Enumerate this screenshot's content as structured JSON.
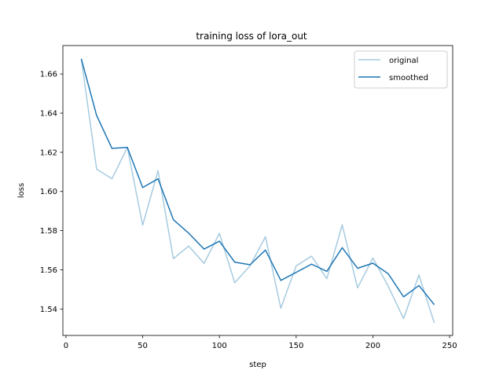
{
  "chart_data": {
    "type": "line",
    "title": "training loss of lora_out",
    "xlabel": "step",
    "ylabel": "loss",
    "xlim": [
      -2,
      252
    ],
    "ylim": [
      1.5265,
      1.6745
    ],
    "xticks": [
      0,
      50,
      100,
      150,
      200,
      250
    ],
    "yticks": [
      1.54,
      1.56,
      1.58,
      1.6,
      1.62,
      1.64,
      1.66
    ],
    "grid": false,
    "legend_position": "top-right",
    "x": [
      10,
      20,
      30,
      40,
      50,
      60,
      70,
      80,
      90,
      100,
      110,
      120,
      130,
      140,
      150,
      160,
      170,
      180,
      190,
      200,
      210,
      220,
      230,
      240
    ],
    "series": [
      {
        "name": "original",
        "color": "#a6cbe0",
        "values": [
          1.6677,
          1.6114,
          1.6065,
          1.6225,
          1.5828,
          1.6106,
          1.5657,
          1.5721,
          1.5633,
          1.5786,
          1.5534,
          1.5621,
          1.5769,
          1.5404,
          1.562,
          1.567,
          1.5555,
          1.5829,
          1.5508,
          1.566,
          1.5516,
          1.5351,
          1.5574,
          1.5329
        ]
      },
      {
        "name": "smoothed",
        "color": "#1f77b4",
        "values": [
          1.6677,
          1.6388,
          1.622,
          1.6225,
          1.602,
          1.6065,
          1.5856,
          1.5787,
          1.5706,
          1.5746,
          1.5639,
          1.5626,
          1.5701,
          1.5546,
          1.5587,
          1.5629,
          1.5592,
          1.5713,
          1.5608,
          1.5634,
          1.558,
          1.5462,
          1.552,
          1.5422
        ]
      }
    ]
  }
}
